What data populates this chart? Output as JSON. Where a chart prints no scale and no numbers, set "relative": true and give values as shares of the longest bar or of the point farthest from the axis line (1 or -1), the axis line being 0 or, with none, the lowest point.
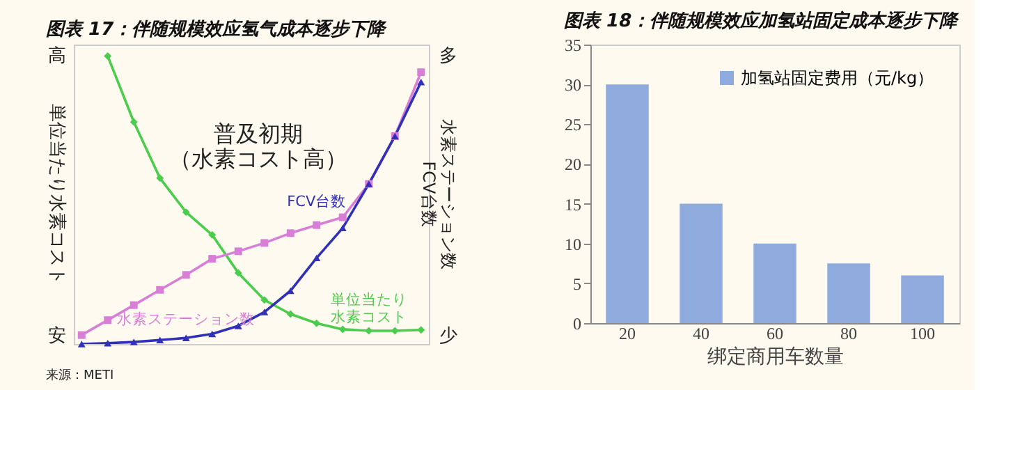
{
  "chart_data": [
    {
      "type": "line",
      "relative": true,
      "title": "图表 17：伴随规模效应氢气成本逐步下降",
      "ylabel": "単位当たり水素コスト",
      "y2label": "水素ステーション数\nFCV台数",
      "categories": [
        null,
        null,
        null,
        null,
        null,
        null,
        null,
        null,
        null,
        null,
        null,
        null,
        null,
        null
      ],
      "series": [
        {
          "name": "単位当たり水素コスト",
          "color": "#4ccc4c",
          "marker": "diamond",
          "values": [
            null,
            1.0,
            0.771,
            0.576,
            0.458,
            0.379,
            0.247,
            0.153,
            0.104,
            0.072,
            0.051,
            0.046,
            0.046,
            0.049
          ]
        },
        {
          "name": "水素ステーション数",
          "color": "#d77fd7",
          "marker": "square",
          "values": [
            0.031,
            0.083,
            0.135,
            0.188,
            0.24,
            0.296,
            0.322,
            0.351,
            0.385,
            0.413,
            0.44,
            0.556,
            0.722,
            0.944
          ]
        },
        {
          "name": "FCV台数",
          "color": "#3030b8",
          "marker": "triangle",
          "values": [
            0,
            0.003,
            0.007,
            0.014,
            0.021,
            0.035,
            0.063,
            0.111,
            0.185,
            0.299,
            0.403,
            0.556,
            0.722,
            0.91
          ]
        }
      ],
      "annotations": [
        "高",
        "安",
        "多",
        "少",
        "普及初期（水素コスト高）",
        "来源：METI"
      ]
    },
    {
      "type": "bar",
      "title": "图表 18：伴随规模效应加氢站固定成本逐步下降",
      "xlabel": "绑定商用车数量",
      "categories": [
        "20",
        "40",
        "60",
        "80",
        "100"
      ],
      "series": [
        {
          "name": "加氢站固定费用（元/kg）",
          "color": "#8faadc",
          "values": [
            30,
            15,
            10,
            7.5,
            6
          ]
        }
      ],
      "ylim": [
        0,
        35
      ],
      "yticks": [
        0,
        5,
        10,
        15,
        20,
        25,
        30,
        35
      ],
      "legend": "top right"
    }
  ]
}
